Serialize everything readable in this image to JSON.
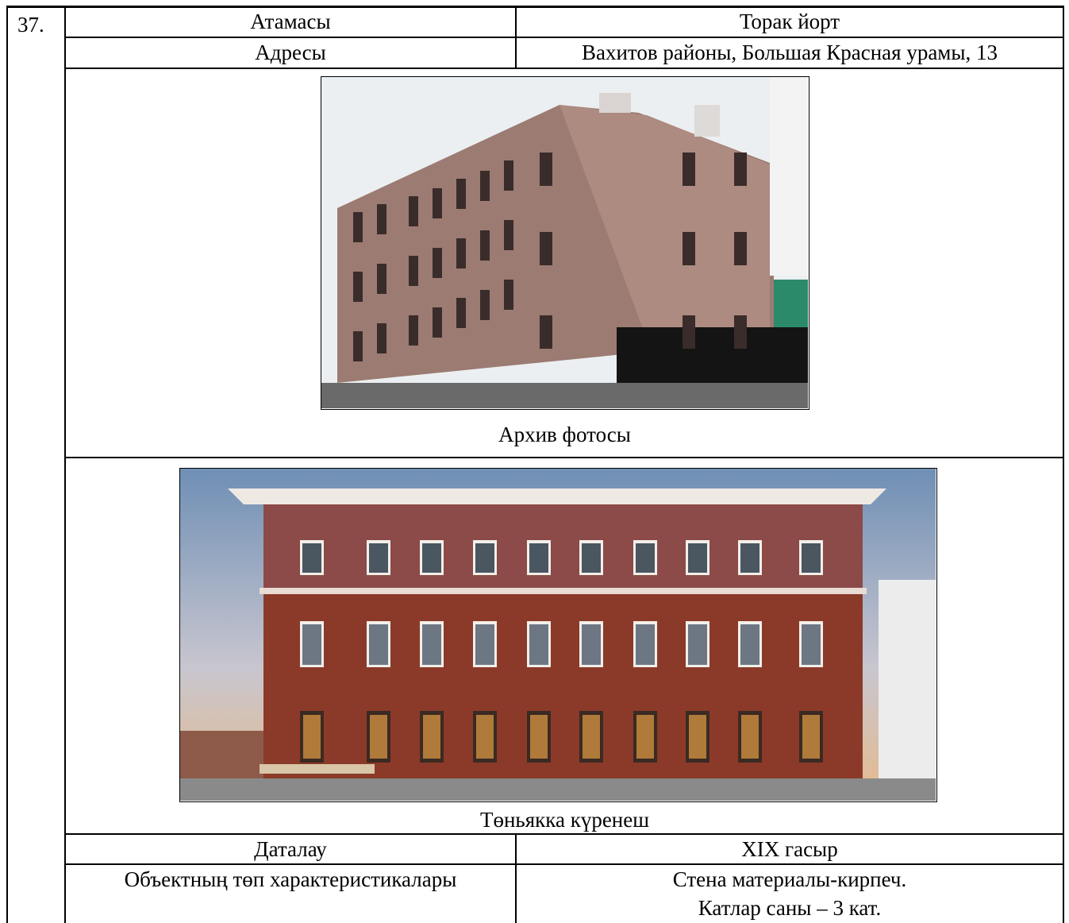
{
  "row_number": "37.",
  "table": {
    "rows": [
      [
        "Атамасы",
        "Торак йорт"
      ],
      [
        "Адресы",
        "Вахитов районы, Большая Красная урамы, 13"
      ]
    ],
    "photos": [
      {
        "caption": "Архив фотосы"
      },
      {
        "caption": "Төньякка күренеш"
      }
    ],
    "bottom_rows": [
      [
        "Даталау",
        "XIX гасыр"
      ],
      [
        "Объектның төп характеристикалары",
        [
          "Стена материалы-кирпеч.",
          "Катлар саны – 3 кат."
        ]
      ]
    ]
  }
}
